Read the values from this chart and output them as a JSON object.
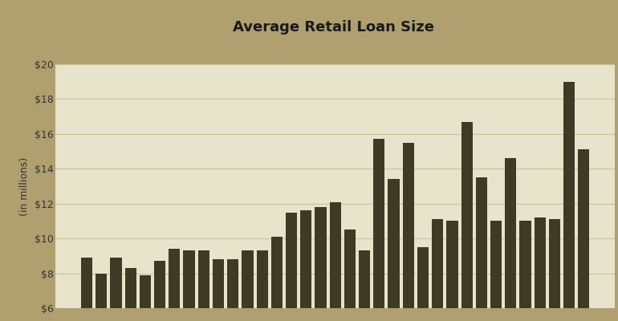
{
  "title": "Average Retail Loan Size",
  "ylabel": "(in millions)",
  "bar_color": "#3d3b26",
  "background_color": "#e8e4cc",
  "outer_background": "#b0a070",
  "grid_color": "#c8c0a0",
  "title_color": "#1a1a1a",
  "ylim": [
    6,
    20
  ],
  "yticks": [
    6,
    8,
    10,
    12,
    14,
    16,
    18,
    20
  ],
  "values": [
    8.9,
    8.0,
    8.9,
    8.3,
    7.9,
    8.7,
    9.4,
    9.3,
    9.3,
    8.8,
    8.8,
    9.3,
    9.3,
    10.1,
    11.5,
    11.6,
    11.8,
    12.1,
    10.5,
    9.3,
    15.7,
    13.4,
    15.5,
    9.5,
    11.1,
    11.0,
    16.7,
    13.5,
    11.0,
    14.6,
    11.0,
    11.2,
    11.1,
    19.0,
    15.1
  ],
  "title_fontsize": 13,
  "ylabel_fontsize": 9,
  "bar_width": 0.78
}
